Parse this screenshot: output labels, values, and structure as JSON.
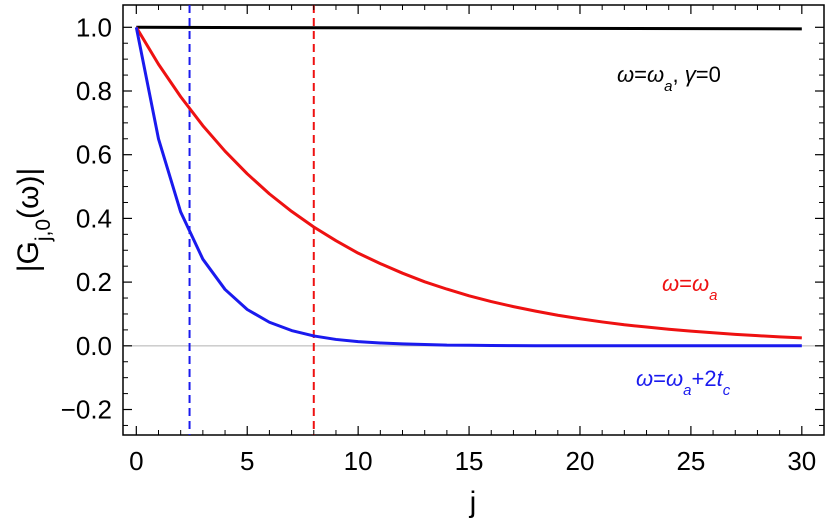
{
  "chart_data": {
    "type": "line",
    "xlabel": "j",
    "ylabel": "|G_{j,0}(ω)|",
    "xlim": [
      -0.6,
      31
    ],
    "ylim": [
      -0.28,
      1.07
    ],
    "x_ticks": [
      0,
      5,
      10,
      15,
      20,
      25,
      30
    ],
    "x_tick_labels": [
      "0",
      "5",
      "10",
      "15",
      "20",
      "25",
      "30"
    ],
    "y_ticks": [
      -0.2,
      0.0,
      0.2,
      0.4,
      0.6,
      0.8,
      1.0
    ],
    "y_tick_labels": [
      "−0.2",
      "0.0",
      "0.2",
      "0.4",
      "0.6",
      "0.8",
      "1.0"
    ],
    "grid": false,
    "zero_line": true,
    "series": [
      {
        "color": "#000000",
        "x": [
          0,
          30
        ],
        "values": [
          1.0,
          0.995
        ]
      },
      {
        "color": "#ee1111",
        "x": [
          0,
          1,
          2,
          3,
          4,
          5,
          6,
          7,
          8,
          9,
          10,
          11,
          12,
          13,
          14,
          15,
          16,
          17,
          18,
          19,
          20,
          21,
          22,
          23,
          24,
          25,
          26,
          27,
          28,
          29,
          30
        ],
        "values": [
          1.0,
          0.884,
          0.782,
          0.691,
          0.611,
          0.54,
          0.477,
          0.422,
          0.373,
          0.33,
          0.291,
          0.258,
          0.228,
          0.201,
          0.178,
          0.157,
          0.139,
          0.123,
          0.109,
          0.096,
          0.085,
          0.075,
          0.066,
          0.059,
          0.052,
          0.046,
          0.041,
          0.036,
          0.032,
          0.028,
          0.025
        ]
      },
      {
        "color": "#1a1aee",
        "x": [
          0,
          1,
          2,
          3,
          4,
          5,
          6,
          7,
          8,
          9,
          10,
          11,
          12,
          13,
          14,
          15,
          16,
          17,
          18,
          19,
          20,
          21,
          22,
          23,
          24,
          25,
          26,
          27,
          28,
          29,
          30
        ],
        "values": [
          1.0,
          0.65,
          0.42,
          0.272,
          0.177,
          0.114,
          0.074,
          0.048,
          0.031,
          0.02,
          0.013,
          0.009,
          0.006,
          0.004,
          0.002,
          0.0016,
          0.001,
          0.0007,
          0.0004,
          0.0003,
          0.0002,
          0.0001,
          0.0001,
          0.0,
          0.0,
          0.0,
          0.0,
          0.0,
          0.0,
          0.0,
          0.0
        ]
      }
    ],
    "vlines": [
      {
        "x": 2.4,
        "color": "#1a1aee",
        "style": "dashed"
      },
      {
        "x": 8.0,
        "color": "#ee1111",
        "style": "dashed"
      }
    ],
    "annotations": [
      {
        "text": "ω=ω_a, γ=0",
        "color": "#000000"
      },
      {
        "text": "ω=ω_a",
        "color": "#ee1111"
      },
      {
        "text": "ω=ω_a+2t_c",
        "color": "#1a1aee"
      }
    ]
  }
}
